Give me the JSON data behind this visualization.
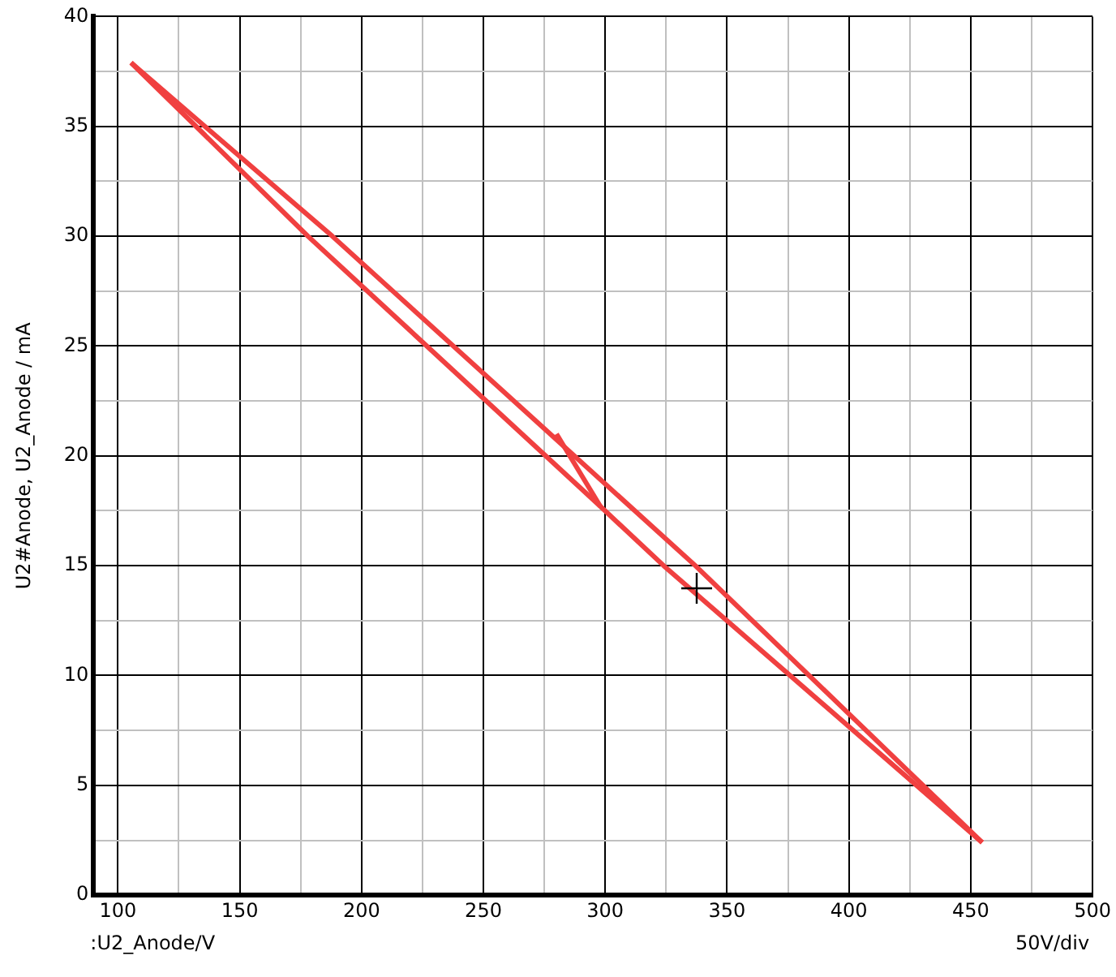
{
  "chart_data": {
    "type": "line",
    "xlabel": ":U2_Anode/V",
    "ylabel": "U2#Anode, U2_Anode / mA",
    "annotations": [
      "50V/div"
    ],
    "xlim": [
      90,
      500
    ],
    "xticks": [
      100,
      {
        "value": 125,
        "label": null
      },
      150,
      {
        "value": 175,
        "label": null
      },
      200,
      {
        "value": 225,
        "label": null
      },
      250,
      {
        "value": 275,
        "label": null
      },
      300,
      {
        "value": 325,
        "label": null
      },
      350,
      {
        "value": 375,
        "label": null
      },
      400,
      {
        "value": 425,
        "label": null
      },
      450,
      {
        "value": 475,
        "label": null
      },
      500
    ],
    "ylim": [
      0,
      40
    ],
    "yticks": [
      0,
      {
        "value": 2.5,
        "label": null
      },
      5,
      {
        "value": 7.5,
        "label": null
      },
      10,
      {
        "value": 12.5,
        "label": null
      },
      15,
      {
        "value": 17.5,
        "label": null
      },
      20,
      {
        "value": 22.5,
        "label": null
      },
      25,
      {
        "value": 27.5,
        "label": null
      },
      30,
      {
        "value": 32.5,
        "label": null
      },
      35,
      {
        "value": 37.5,
        "label": null
      },
      40
    ],
    "grid": true,
    "legend": false,
    "marker": "none",
    "line_style": "solid",
    "series": [
      {
        "color": "#f04040",
        "x": [
          105.4,
          178,
          298,
          324,
          454.7
        ],
        "values": [
          37.9,
          30,
          17.7,
          15,
          2.4
        ]
      },
      {
        "color": "#f04040",
        "x": [
          105.4,
          188,
          337,
          454.7
        ],
        "values": [
          37.9,
          30,
          15,
          2.4
        ]
      },
      {
        "color": "#f04040",
        "x": [
          280,
          298
        ],
        "values": [
          21,
          17.7
        ]
      }
    ]
  }
}
